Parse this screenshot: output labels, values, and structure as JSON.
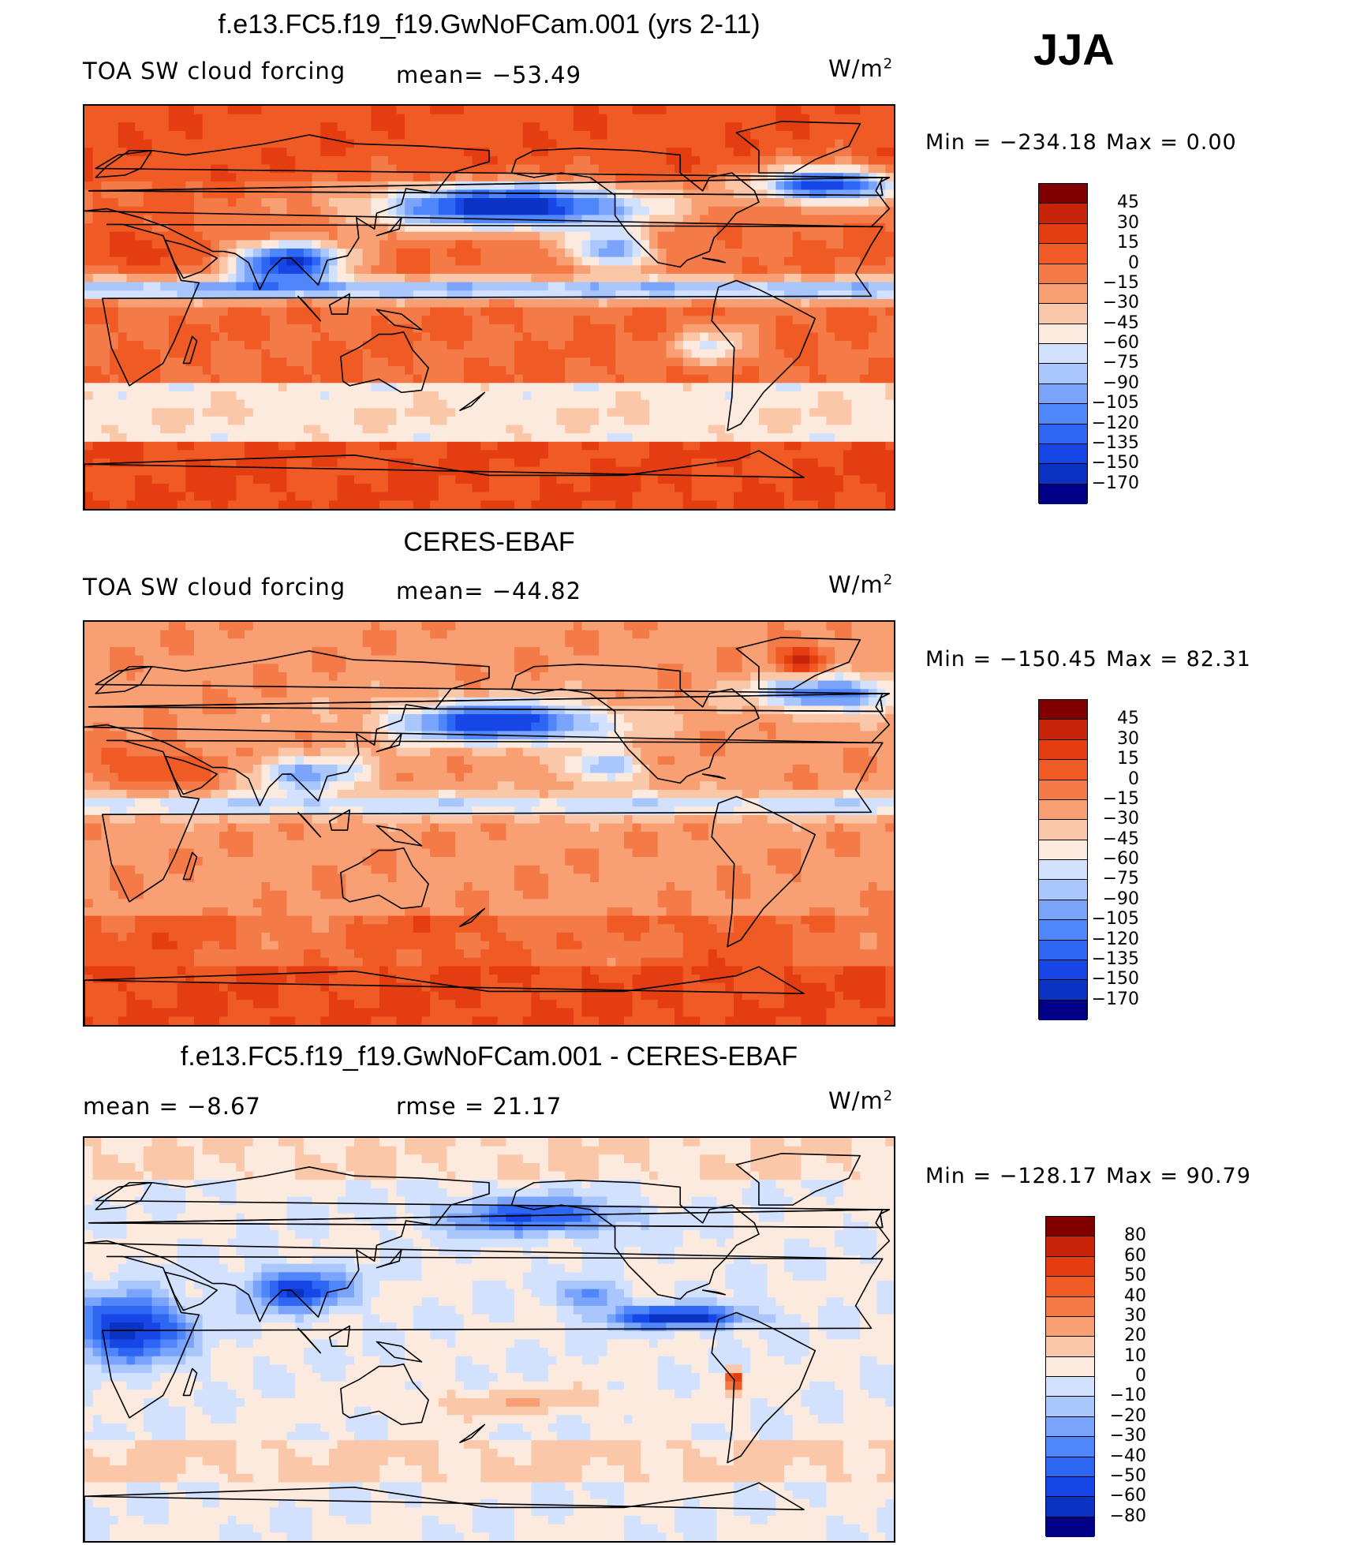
{
  "season": "JJA",
  "colors": {
    "diverging_18": [
      "#000086",
      "#00189c",
      "#0a33c4",
      "#1746e6",
      "#2e66f4",
      "#4f86fb",
      "#7aa4fc",
      "#a9c6fd",
      "#d2e2fe",
      "#fdeadf",
      "#fbc7a9",
      "#f89f74",
      "#f47a48",
      "#f05a24",
      "#e53d12",
      "#c8240a",
      "#9e1105",
      "#800000"
    ]
  },
  "panels": [
    {
      "title": "f.e13.FC5.f19_f19.GwNoFCam.001 (yrs 2-11)",
      "left_label": "TOA SW cloud forcing",
      "mean_label": "mean= −53.49",
      "units_text": "W/m",
      "units_exp": "2",
      "min_text": "Min  =  −234.18",
      "max_text": "Max  =     0.00"
    },
    {
      "title": "CERES-EBAF",
      "left_label": "TOA SW cloud forcing",
      "mean_label": "mean= −44.82",
      "units_text": "W/m",
      "units_exp": "2",
      "min_text": "Min  =  −150.45",
      "max_text": "Max  =    82.31"
    },
    {
      "title": "f.e13.FC5.f19_f19.GwNoFCam.001 - CERES-EBAF",
      "left_label": "mean  =    −8.67",
      "mean_label": "rmse  =    21.17",
      "units_text": "W/m",
      "units_exp": "2",
      "min_text": "Min  =  −128.17",
      "max_text": "Max  =    90.79"
    }
  ],
  "chart_data": [
    {
      "type": "heatmap",
      "title": "f.e13.FC5.f19_f19.GwNoFCam.001 (yrs 2-11)",
      "variable": "TOA SW cloud forcing",
      "units": "W/m2",
      "mean": -53.49,
      "min": -234.18,
      "max": 0.0,
      "colorbar_levels": [
        45,
        30,
        15,
        0,
        -15,
        -30,
        -45,
        -60,
        -75,
        -90,
        -105,
        -120,
        -135,
        -150,
        -170
      ],
      "colorbar_labels": [
        "45",
        "30",
        "15",
        "0",
        "−15",
        "−30",
        "−45",
        "−60",
        "−75",
        "−90",
        "−105",
        "−120",
        "−135",
        "−150",
        "−170"
      ]
    },
    {
      "type": "heatmap",
      "title": "CERES-EBAF",
      "variable": "TOA SW cloud forcing",
      "units": "W/m2",
      "mean": -44.82,
      "min": -150.45,
      "max": 82.31,
      "colorbar_levels": [
        45,
        30,
        15,
        0,
        -15,
        -30,
        -45,
        -60,
        -75,
        -90,
        -105,
        -120,
        -135,
        -150,
        -170
      ],
      "colorbar_labels": [
        "45",
        "30",
        "15",
        "0",
        "−15",
        "−30",
        "−45",
        "−60",
        "−75",
        "−90",
        "−105",
        "−120",
        "−135",
        "−150",
        "−170"
      ]
    },
    {
      "type": "heatmap",
      "title": "f.e13.FC5.f19_f19.GwNoFCam.001 - CERES-EBAF",
      "units": "W/m2",
      "mean": -8.67,
      "rmse": 21.17,
      "min": -128.17,
      "max": 90.79,
      "colorbar_levels": [
        80,
        60,
        50,
        40,
        30,
        20,
        10,
        0,
        -10,
        -20,
        -30,
        -40,
        -50,
        -60,
        -80
      ],
      "colorbar_labels": [
        "80",
        "60",
        "50",
        "40",
        "30",
        "20",
        "10",
        "0",
        "−10",
        "−20",
        "−30",
        "−40",
        "−50",
        "−60",
        "−80"
      ]
    }
  ]
}
